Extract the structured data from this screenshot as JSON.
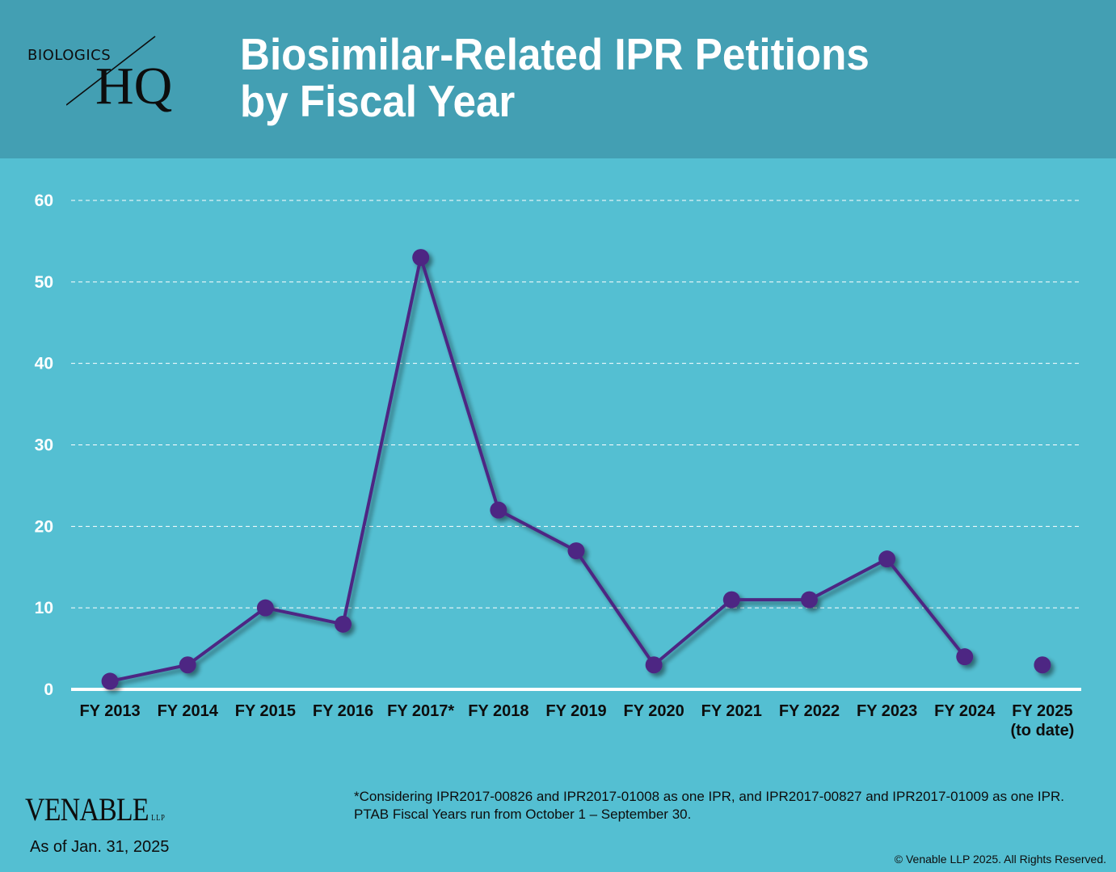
{
  "header": {
    "logo_top": "BIOLOGICS",
    "logo_bottom": "HQ",
    "title_line1": "Biosimilar-Related IPR Petitions",
    "title_line2": "by Fiscal Year"
  },
  "colors": {
    "header_bg": "#439fb3",
    "body_bg": "#54bfd2",
    "line": "#4e2683",
    "grid": "#ffffff"
  },
  "chart_data": {
    "type": "line",
    "title": "Biosimilar-Related IPR Petitions by Fiscal Year",
    "xlabel": "",
    "ylabel": "",
    "ylim": [
      0,
      60
    ],
    "yticks": [
      0,
      10,
      20,
      30,
      40,
      50,
      60
    ],
    "grid": true,
    "legend": "none",
    "categories": [
      "FY 2013",
      "FY 2014",
      "FY 2015",
      "FY 2016",
      "FY 2017*",
      "FY 2018",
      "FY 2019",
      "FY 2020",
      "FY 2021",
      "FY 2022",
      "FY 2023",
      "FY 2024",
      "FY 2025"
    ],
    "category_sublabels": [
      "",
      "",
      "",
      "",
      "",
      "",
      "",
      "",
      "",
      "",
      "",
      "",
      "(to date)"
    ],
    "series": [
      {
        "name": "IPR Petitions",
        "values": [
          1,
          3,
          10,
          8,
          53,
          22,
          17,
          3,
          11,
          11,
          16,
          4,
          3
        ],
        "connected_through_index": 11
      }
    ]
  },
  "footer": {
    "brand": "VENABLE",
    "brand_suffix": "LLP",
    "as_of": "As of Jan. 31, 2025",
    "footnote_line1": "*Considering IPR2017-00826 and IPR2017-01008 as one IPR, and IPR2017-00827 and IPR2017-01009 as one IPR.",
    "footnote_line2": "PTAB Fiscal Years run from October 1 – September 30.",
    "copyright": "© Venable LLP 2025. All Rights Reserved."
  }
}
